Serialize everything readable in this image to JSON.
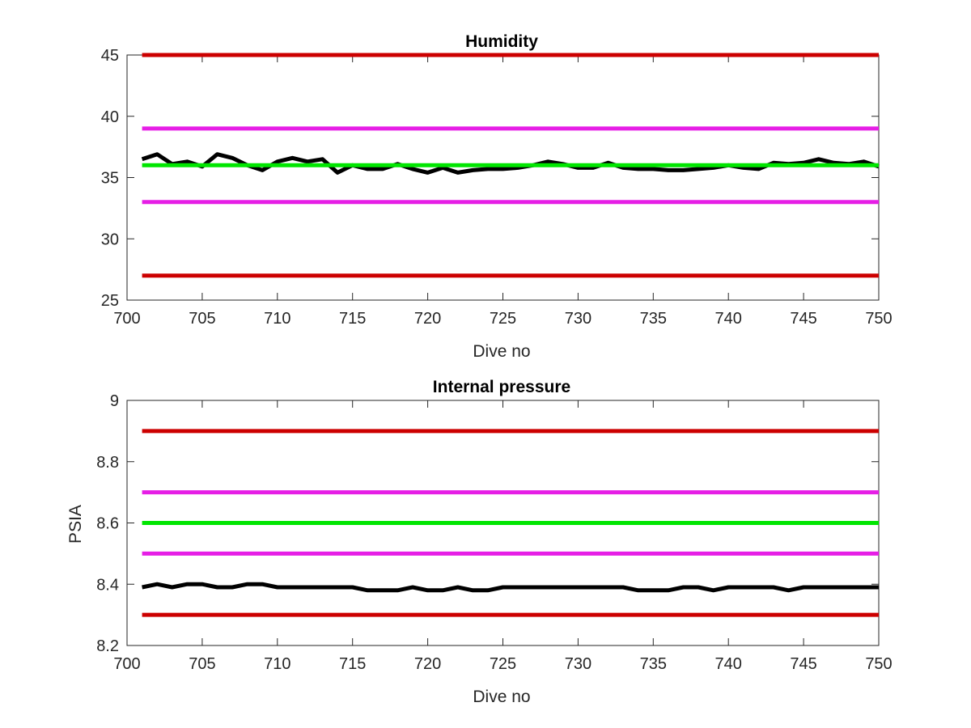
{
  "chart_data": [
    {
      "type": "line",
      "title": "Humidity",
      "xlabel": "Dive no",
      "ylabel": "",
      "xlim": [
        700,
        750
      ],
      "ylim": [
        25,
        45
      ],
      "xticks": [
        700,
        705,
        710,
        715,
        720,
        725,
        730,
        735,
        740,
        745,
        750
      ],
      "yticks": [
        25,
        30,
        35,
        40,
        45
      ],
      "xtick_labels": [
        "700",
        "705",
        "710",
        "715",
        "720",
        "725",
        "730",
        "735",
        "740",
        "745",
        "750"
      ],
      "ytick_labels": [
        "25",
        "30",
        "35",
        "40",
        "45"
      ],
      "grid": false,
      "series": [
        {
          "color": "#cc0000",
          "x": [
            701,
            750
          ],
          "values": [
            45,
            45
          ]
        },
        {
          "color": "#cc0000",
          "x": [
            701,
            750
          ],
          "values": [
            27,
            27
          ]
        },
        {
          "color": "#e61ee6",
          "x": [
            701,
            750
          ],
          "values": [
            39,
            39
          ]
        },
        {
          "color": "#e61ee6",
          "x": [
            701,
            750
          ],
          "values": [
            33,
            33
          ]
        },
        {
          "color": "#000000",
          "x": [
            701,
            702,
            703,
            704,
            705,
            706,
            707,
            708,
            709,
            710,
            711,
            712,
            713,
            714,
            715,
            716,
            717,
            718,
            719,
            720,
            721,
            722,
            723,
            724,
            725,
            726,
            727,
            728,
            729,
            730,
            731,
            732,
            733,
            734,
            735,
            736,
            737,
            738,
            739,
            740,
            741,
            742,
            743,
            744,
            745,
            746,
            747,
            748,
            749,
            750
          ],
          "values": [
            36.5,
            36.9,
            36.1,
            36.3,
            35.9,
            36.9,
            36.6,
            36.0,
            35.6,
            36.3,
            36.6,
            36.3,
            36.5,
            35.4,
            36.0,
            35.7,
            35.7,
            36.1,
            35.7,
            35.4,
            35.8,
            35.4,
            35.6,
            35.7,
            35.7,
            35.8,
            36.0,
            36.3,
            36.1,
            35.8,
            35.8,
            36.2,
            35.8,
            35.7,
            35.7,
            35.6,
            35.6,
            35.7,
            35.8,
            36.0,
            35.8,
            35.7,
            36.2,
            36.1,
            36.2,
            36.5,
            36.2,
            36.1,
            36.3,
            35.9
          ]
        },
        {
          "color": "#00e600",
          "x": [
            701,
            750
          ],
          "values": [
            36,
            36
          ]
        }
      ]
    },
    {
      "type": "line",
      "title": "Internal pressure",
      "xlabel": "Dive no",
      "ylabel": "PSIA",
      "xlim": [
        700,
        750
      ],
      "ylim": [
        8.2,
        9.0
      ],
      "xticks": [
        700,
        705,
        710,
        715,
        720,
        725,
        730,
        735,
        740,
        745,
        750
      ],
      "yticks": [
        8.2,
        8.4,
        8.6,
        8.8,
        9.0
      ],
      "xtick_labels": [
        "700",
        "705",
        "710",
        "715",
        "720",
        "725",
        "730",
        "735",
        "740",
        "745",
        "750"
      ],
      "ytick_labels": [
        "8.2",
        "8.4",
        "8.6",
        "8.8",
        "9"
      ],
      "grid": false,
      "series": [
        {
          "color": "#cc0000",
          "x": [
            701,
            750
          ],
          "values": [
            8.9,
            8.9
          ]
        },
        {
          "color": "#cc0000",
          "x": [
            701,
            750
          ],
          "values": [
            8.3,
            8.3
          ]
        },
        {
          "color": "#e61ee6",
          "x": [
            701,
            750
          ],
          "values": [
            8.7,
            8.7
          ]
        },
        {
          "color": "#e61ee6",
          "x": [
            701,
            750
          ],
          "values": [
            8.5,
            8.5
          ]
        },
        {
          "color": "#00e600",
          "x": [
            701,
            750
          ],
          "values": [
            8.6,
            8.6
          ]
        },
        {
          "color": "#000000",
          "x": [
            701,
            702,
            703,
            704,
            705,
            706,
            707,
            708,
            709,
            710,
            711,
            712,
            713,
            714,
            715,
            716,
            717,
            718,
            719,
            720,
            721,
            722,
            723,
            724,
            725,
            726,
            727,
            728,
            729,
            730,
            731,
            732,
            733,
            734,
            735,
            736,
            737,
            738,
            739,
            740,
            741,
            742,
            743,
            744,
            745,
            746,
            747,
            748,
            749,
            750
          ],
          "values": [
            8.39,
            8.4,
            8.39,
            8.4,
            8.4,
            8.39,
            8.39,
            8.4,
            8.4,
            8.39,
            8.39,
            8.39,
            8.39,
            8.39,
            8.39,
            8.38,
            8.38,
            8.38,
            8.39,
            8.38,
            8.38,
            8.39,
            8.38,
            8.38,
            8.39,
            8.39,
            8.39,
            8.39,
            8.39,
            8.39,
            8.39,
            8.39,
            8.39,
            8.38,
            8.38,
            8.38,
            8.39,
            8.39,
            8.38,
            8.39,
            8.39,
            8.39,
            8.39,
            8.38,
            8.39,
            8.39,
            8.39,
            8.39,
            8.39,
            8.39
          ]
        }
      ]
    }
  ]
}
